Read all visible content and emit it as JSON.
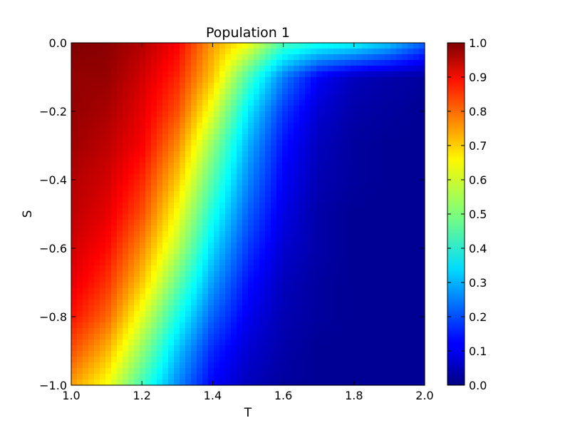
{
  "chart_data": {
    "type": "heatmap",
    "title": "Population 1",
    "xlabel": "T",
    "ylabel": "S",
    "xlim": [
      1.0,
      2.0
    ],
    "ylim": [
      -1.0,
      0.0
    ],
    "xticks": [
      "1.0",
      "1.2",
      "1.4",
      "1.6",
      "1.8",
      "2.0"
    ],
    "yticks": [
      "0.0",
      "−0.2",
      "−0.4",
      "−0.6",
      "−0.8",
      "−1.0"
    ],
    "colorbar": {
      "min": 0.0,
      "max": 1.0,
      "ticks": [
        "1.0",
        "0.9",
        "0.8",
        "0.7",
        "0.6",
        "0.5",
        "0.4",
        "0.3",
        "0.2",
        "0.1",
        "0.0"
      ],
      "colormap": "jet"
    },
    "grid": false,
    "x": [
      1.0,
      1.1,
      1.2,
      1.3,
      1.4,
      1.5,
      1.6,
      1.7,
      1.8,
      1.9,
      2.0
    ],
    "y": [
      0.0,
      -0.1,
      -0.2,
      -0.3,
      -0.4,
      -0.5,
      -0.6,
      -0.7,
      -0.8,
      -0.9,
      -1.0
    ],
    "z": [
      [
        1.0,
        0.99,
        0.95,
        0.88,
        0.72,
        0.62,
        0.45,
        0.4,
        0.38,
        0.32,
        0.22
      ],
      [
        0.98,
        0.98,
        0.92,
        0.84,
        0.68,
        0.45,
        0.25,
        0.12,
        0.06,
        0.04,
        0.03
      ],
      [
        0.98,
        0.96,
        0.9,
        0.8,
        0.6,
        0.36,
        0.18,
        0.08,
        0.04,
        0.03,
        0.02
      ],
      [
        0.97,
        0.94,
        0.88,
        0.74,
        0.52,
        0.3,
        0.14,
        0.06,
        0.03,
        0.02,
        0.02
      ],
      [
        0.95,
        0.92,
        0.84,
        0.68,
        0.46,
        0.26,
        0.12,
        0.05,
        0.03,
        0.02,
        0.02
      ],
      [
        0.94,
        0.9,
        0.8,
        0.62,
        0.4,
        0.22,
        0.1,
        0.04,
        0.02,
        0.02,
        0.02
      ],
      [
        0.92,
        0.87,
        0.74,
        0.56,
        0.34,
        0.18,
        0.08,
        0.04,
        0.02,
        0.02,
        0.02
      ],
      [
        0.9,
        0.83,
        0.68,
        0.48,
        0.28,
        0.14,
        0.06,
        0.03,
        0.02,
        0.02,
        0.02
      ],
      [
        0.86,
        0.78,
        0.6,
        0.4,
        0.22,
        0.11,
        0.05,
        0.03,
        0.02,
        0.02,
        0.02
      ],
      [
        0.8,
        0.7,
        0.52,
        0.32,
        0.16,
        0.08,
        0.04,
        0.02,
        0.02,
        0.02,
        0.02
      ],
      [
        0.72,
        0.62,
        0.44,
        0.26,
        0.12,
        0.06,
        0.03,
        0.02,
        0.02,
        0.02,
        0.02
      ]
    ]
  }
}
